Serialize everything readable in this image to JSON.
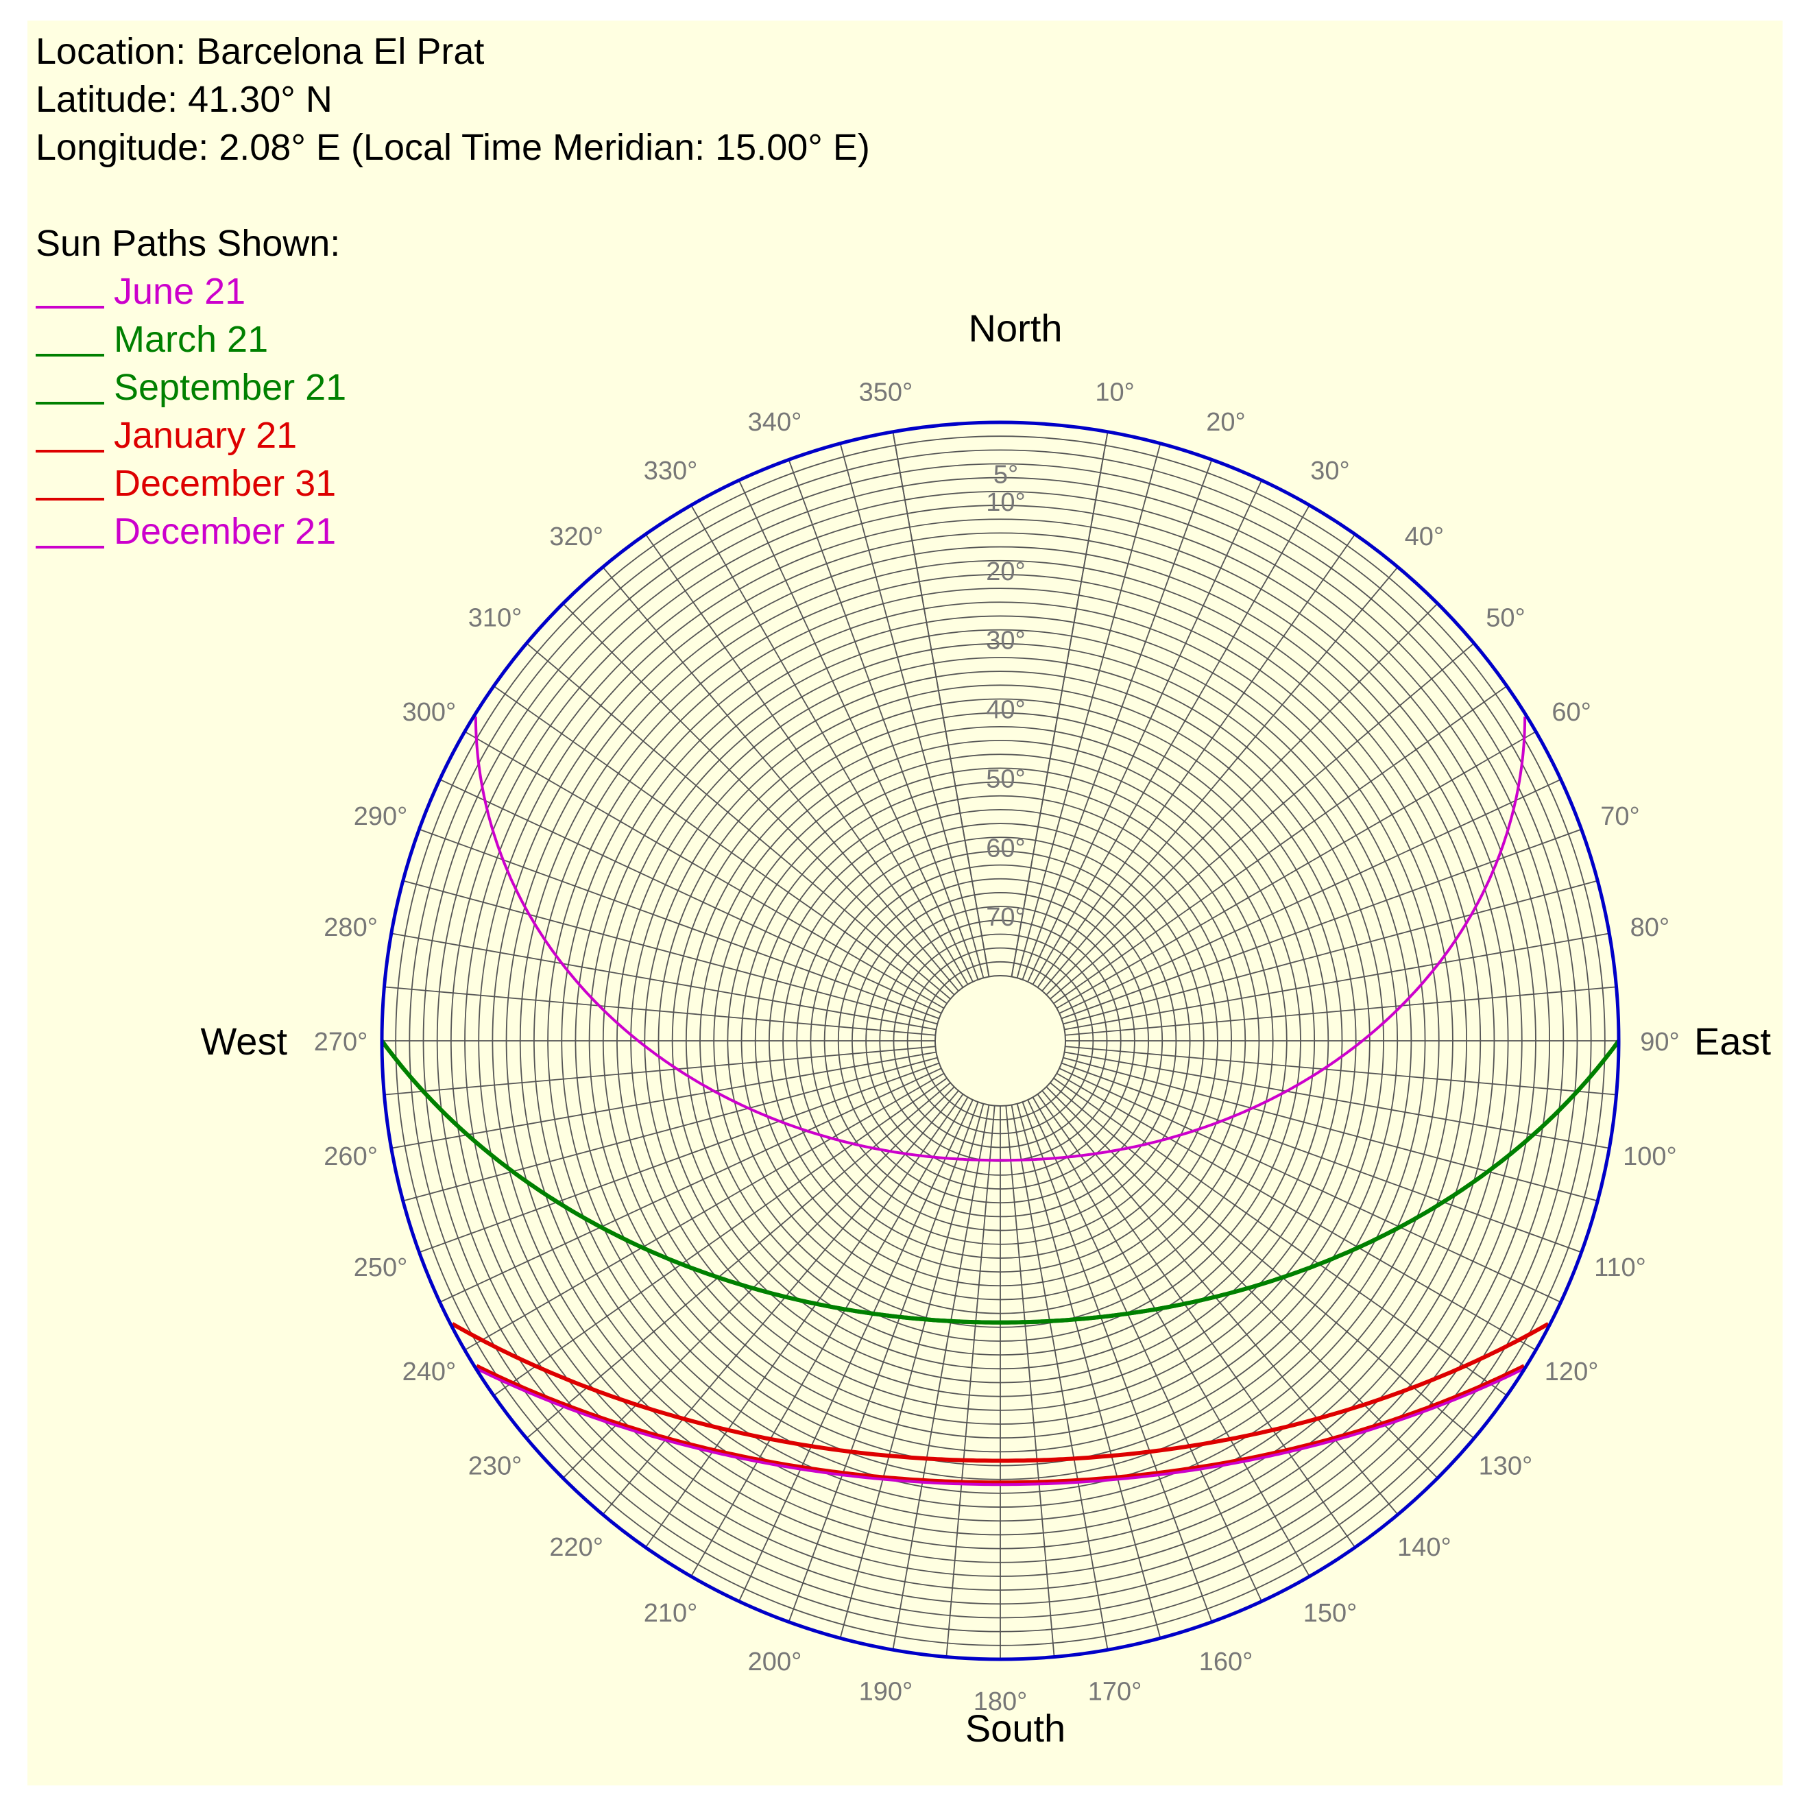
{
  "info": {
    "location": "Location: Barcelona El Prat",
    "latitude": "Latitude: 41.30° N",
    "longitude": "Longitude: 2.08° E (Local Time Meridian: 15.00° E)",
    "legend_title": "Sun Paths Shown:"
  },
  "compass": {
    "north": "North",
    "south": "South",
    "east": "East",
    "west": "West"
  },
  "colors": {
    "background": "#ffffe1",
    "horizon": "#0000c8",
    "grid": "#555555",
    "label": "#777777"
  },
  "chart_data": {
    "type": "polar-sun-path",
    "title": "",
    "latitude_deg": 41.3,
    "longitude_deg": 2.08,
    "local_time_meridian_deg": 15.0,
    "azimuth_ticks": [
      "10°",
      "20°",
      "30°",
      "40°",
      "50°",
      "60°",
      "70°",
      "80°",
      "90°",
      "100°",
      "110°",
      "120°",
      "130°",
      "140°",
      "150°",
      "160°",
      "170°",
      "180°",
      "190°",
      "200°",
      "210°",
      "220°",
      "230°",
      "240°",
      "250°",
      "260°",
      "270°",
      "280°",
      "290°",
      "300°",
      "310°",
      "320°",
      "330°",
      "340°",
      "350°"
    ],
    "altitude_ticks": [
      "5°",
      "10°",
      "20°",
      "30°",
      "40°",
      "50°",
      "60°",
      "70°"
    ],
    "altitude_range": [
      0,
      80
    ],
    "azimuth_range": [
      0,
      360
    ],
    "grid": true,
    "series": [
      {
        "name": "June 21",
        "color": "#cc00cc",
        "declination_deg": 23.44,
        "azimuth_range": [
          59,
          301
        ],
        "max_altitude_deg": 72.1
      },
      {
        "name": "March 21",
        "color": "#008000",
        "declination_deg": 0.0,
        "azimuth_range": [
          90,
          270
        ],
        "max_altitude_deg": 48.7
      },
      {
        "name": "September 21",
        "color": "#008000",
        "declination_deg": 0.0,
        "azimuth_range": [
          90,
          270
        ],
        "max_altitude_deg": 48.7
      },
      {
        "name": "January 21",
        "color": "#dd0000",
        "declination_deg": -20.0,
        "azimuth_range": [
          117,
          243
        ],
        "max_altitude_deg": 28.7
      },
      {
        "name": "December 31",
        "color": "#dd0000",
        "declination_deg": -23.1,
        "azimuth_range": [
          121,
          239
        ],
        "max_altitude_deg": 25.6
      },
      {
        "name": "December 21",
        "color": "#cc00cc",
        "declination_deg": -23.44,
        "azimuth_range": [
          121,
          239
        ],
        "max_altitude_deg": 25.3
      }
    ]
  }
}
